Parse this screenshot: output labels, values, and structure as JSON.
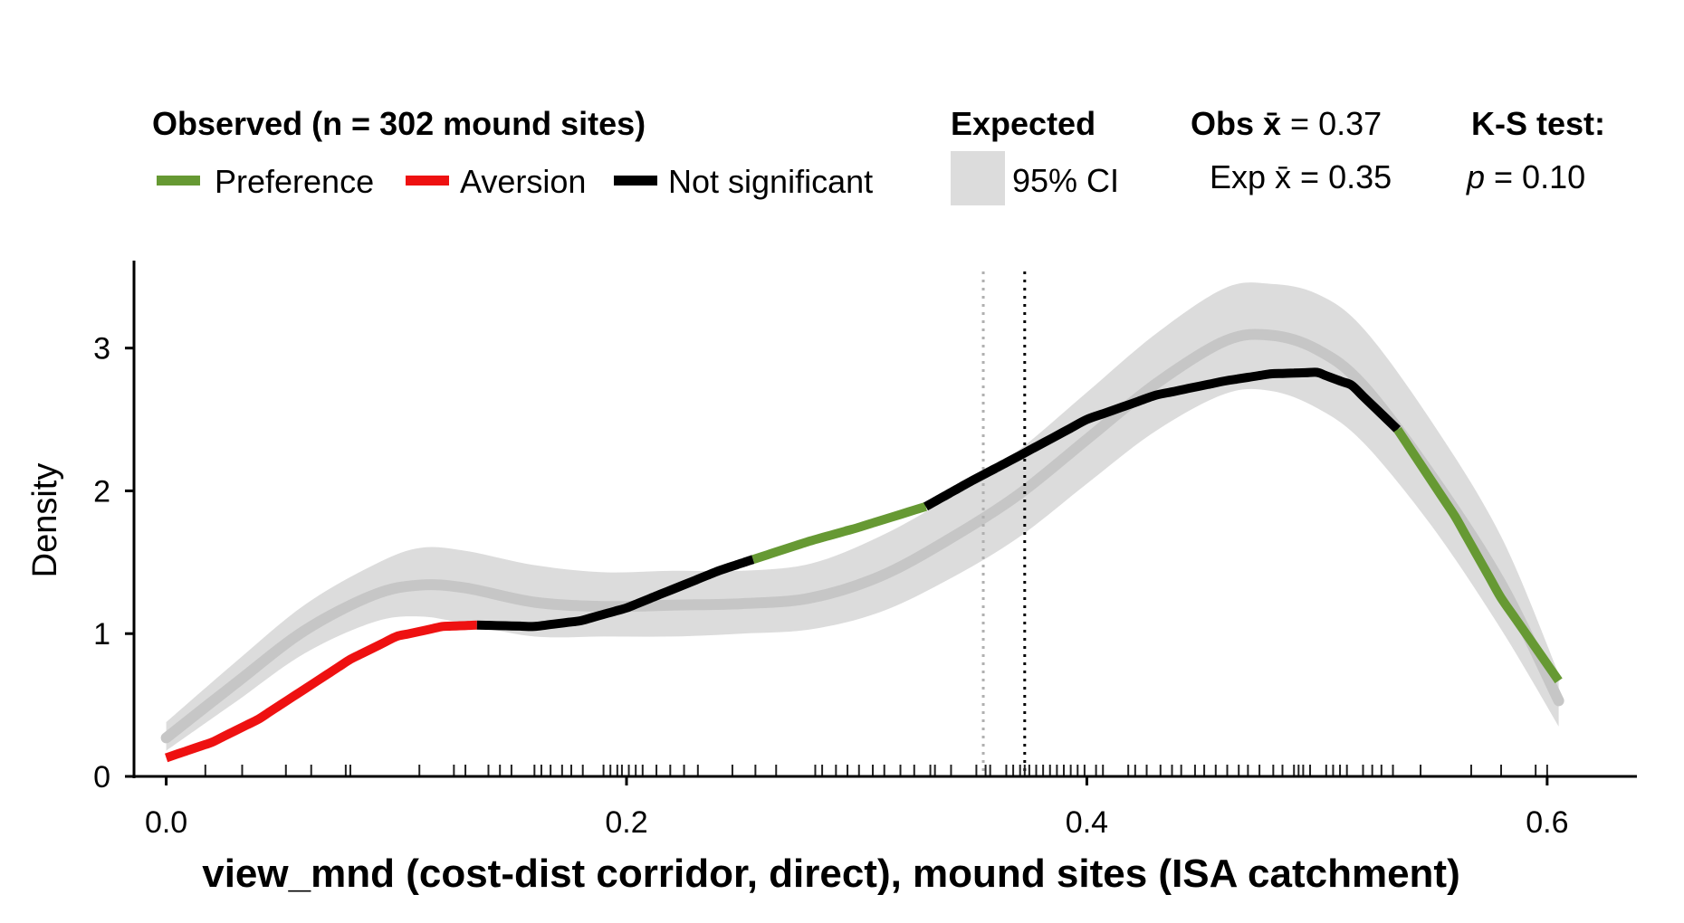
{
  "legend": {
    "observed_title": "Observed (n = 302 mound sites)",
    "items": [
      {
        "label": "Preference",
        "color": "#669933"
      },
      {
        "label": "Aversion",
        "color": "#ee1111"
      },
      {
        "label": "Not significant",
        "color": "#000000"
      }
    ],
    "expected_title": "Expected",
    "ci_label": "95% CI",
    "obs_mean_prefix": "Obs ",
    "obs_mean_value": " = 0.37",
    "exp_mean_prefix": "Exp ",
    "exp_mean_value": " = 0.35",
    "xbar_symbol": "x̄",
    "ks_title": "K-S test:",
    "ks_p_symbol": "p",
    "ks_p_value": " = 0.10"
  },
  "chart_data": {
    "type": "line",
    "xlabel": "view_mnd (cost-dist corridor, direct), mound sites (ISA catchment)",
    "ylabel": "Density",
    "xlim": [
      -0.014,
      0.639
    ],
    "ylim": [
      0,
      3.6
    ],
    "xticks": [
      0.0,
      0.2,
      0.4,
      0.6
    ],
    "xtick_labels": [
      "0.0",
      "0.2",
      "0.4",
      "0.6"
    ],
    "yticks": [
      0,
      1,
      2,
      3
    ],
    "ytick_labels": [
      "0",
      "1",
      "2",
      "3"
    ],
    "observed_curve": {
      "x": [
        0.0,
        0.02,
        0.04,
        0.06,
        0.08,
        0.1,
        0.12,
        0.135,
        0.16,
        0.18,
        0.2,
        0.22,
        0.24,
        0.255,
        0.28,
        0.3,
        0.33,
        0.35,
        0.37,
        0.4,
        0.43,
        0.46,
        0.48,
        0.5,
        0.515,
        0.535,
        0.56,
        0.58,
        0.605
      ],
      "y": [
        0.13,
        0.24,
        0.4,
        0.61,
        0.82,
        0.98,
        1.05,
        1.06,
        1.05,
        1.09,
        1.18,
        1.31,
        1.44,
        1.52,
        1.65,
        1.74,
        1.89,
        2.07,
        2.24,
        2.5,
        2.67,
        2.77,
        2.82,
        2.83,
        2.74,
        2.43,
        1.82,
        1.25,
        0.67
      ]
    },
    "observed_segments": [
      {
        "class": "Aversion",
        "x_from": 0.0,
        "x_to": 0.135
      },
      {
        "class": "Not significant",
        "x_from": 0.135,
        "x_to": 0.255
      },
      {
        "class": "Preference",
        "x_from": 0.255,
        "x_to": 0.33
      },
      {
        "class": "Not significant",
        "x_from": 0.33,
        "x_to": 0.535
      },
      {
        "class": "Preference",
        "x_from": 0.535,
        "x_to": 0.605
      }
    ],
    "expected_curve": {
      "x": [
        0.0,
        0.03,
        0.06,
        0.09,
        0.11,
        0.13,
        0.16,
        0.19,
        0.22,
        0.25,
        0.28,
        0.31,
        0.34,
        0.37,
        0.4,
        0.43,
        0.46,
        0.48,
        0.5,
        0.52,
        0.55,
        0.58,
        0.605
      ],
      "y": [
        0.27,
        0.65,
        1.02,
        1.27,
        1.34,
        1.32,
        1.22,
        1.19,
        1.2,
        1.21,
        1.25,
        1.4,
        1.66,
        1.97,
        2.36,
        2.75,
        3.05,
        3.09,
        2.99,
        2.74,
        2.1,
        1.35,
        0.53
      ],
      "ci_lower": [
        0.18,
        0.52,
        0.86,
        1.08,
        1.12,
        1.07,
        0.98,
        0.98,
        0.98,
        1.0,
        1.03,
        1.15,
        1.38,
        1.67,
        2.05,
        2.42,
        2.68,
        2.7,
        2.58,
        2.34,
        1.75,
        1.03,
        0.35
      ],
      "ci_upper": [
        0.38,
        0.8,
        1.2,
        1.48,
        1.6,
        1.58,
        1.48,
        1.43,
        1.44,
        1.44,
        1.49,
        1.68,
        1.95,
        2.28,
        2.69,
        3.1,
        3.42,
        3.45,
        3.38,
        3.14,
        2.48,
        1.68,
        0.72
      ]
    },
    "vlines": [
      {
        "label": "Exp mean",
        "x": 0.355,
        "style": "dotted",
        "color": "#b0b0b0"
      },
      {
        "label": "Obs mean",
        "x": 0.373,
        "style": "dotted",
        "color": "#000000"
      }
    ],
    "rug": [
      0.017,
      0.033,
      0.052,
      0.063,
      0.078,
      0.08,
      0.11,
      0.125,
      0.13,
      0.14,
      0.145,
      0.15,
      0.16,
      0.163,
      0.167,
      0.172,
      0.176,
      0.181,
      0.19,
      0.193,
      0.196,
      0.198,
      0.201,
      0.204,
      0.207,
      0.213,
      0.219,
      0.225,
      0.231,
      0.246,
      0.256,
      0.265,
      0.282,
      0.285,
      0.291,
      0.296,
      0.301,
      0.307,
      0.312,
      0.319,
      0.325,
      0.332,
      0.334,
      0.341,
      0.352,
      0.356,
      0.358,
      0.365,
      0.368,
      0.371,
      0.373,
      0.375,
      0.378,
      0.381,
      0.384,
      0.387,
      0.39,
      0.393,
      0.396,
      0.399,
      0.404,
      0.407,
      0.418,
      0.421,
      0.426,
      0.432,
      0.437,
      0.441,
      0.447,
      0.451,
      0.456,
      0.461,
      0.466,
      0.47,
      0.475,
      0.481,
      0.485,
      0.49,
      0.492,
      0.494,
      0.497,
      0.504,
      0.507,
      0.51,
      0.513,
      0.52,
      0.524,
      0.528,
      0.533,
      0.545,
      0.567,
      0.58,
      0.595,
      0.6
    ]
  }
}
